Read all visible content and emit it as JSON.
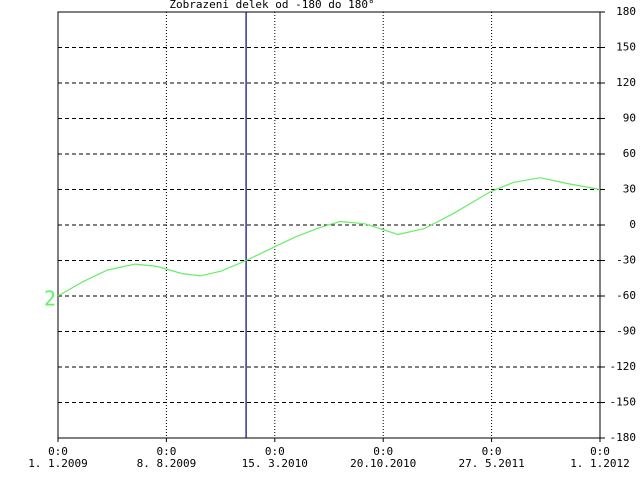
{
  "chart_data": {
    "type": "line",
    "title": "Zobrazeni delek od -180 do 180°",
    "xlim": [
      0,
      1095
    ],
    "xticks": [
      {
        "value": 0,
        "label": "1. 1.2009"
      },
      {
        "value": 219,
        "label": "8. 8.2009"
      },
      {
        "value": 438,
        "label": "15. 3.2010"
      },
      {
        "value": 657,
        "label": "20.10.2010"
      },
      {
        "value": 876,
        "label": "27. 5.2011"
      },
      {
        "value": 1095,
        "label": "1. 1.2012"
      }
    ],
    "xtick_times": [
      "0:0",
      "0:0",
      "0:0",
      "0:0",
      "0:0",
      "0:0"
    ],
    "ylim": [
      -180,
      180
    ],
    "yticks": [
      180,
      150,
      120,
      90,
      60,
      30,
      0,
      -30,
      -60,
      -90,
      -120,
      -150,
      -180
    ],
    "grid": true,
    "cursor": 380,
    "x": [
      0,
      50,
      100,
      156,
      200,
      250,
      287,
      330,
      380,
      430,
      480,
      530,
      570,
      620,
      687,
      740,
      800,
      873,
      920,
      974,
      1030,
      1095
    ],
    "series": [
      {
        "name": "2",
        "color": "#66ee66",
        "values": [
          -60,
          -48,
          -38,
          -33,
          -35,
          -41,
          -43,
          -39,
          -30,
          -20,
          -10,
          -2,
          3,
          1,
          -8,
          -3,
          10,
          28,
          36,
          40,
          35,
          30
        ]
      }
    ]
  }
}
